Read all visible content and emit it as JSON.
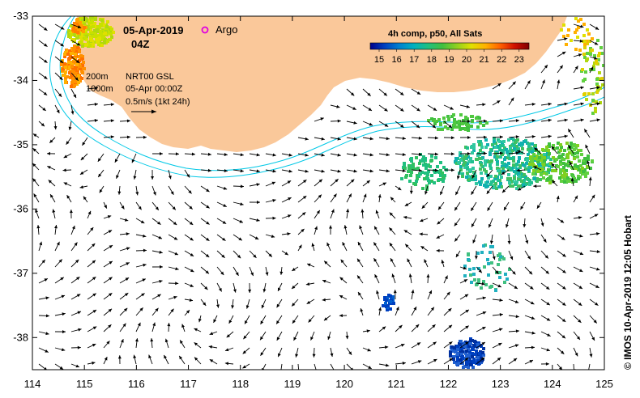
{
  "title": {
    "date": "05-Apr-2019",
    "time": "04Z",
    "argo_label": "Argo"
  },
  "colorbar": {
    "title": "4h comp, p50, All Sats",
    "ticks": [
      "15",
      "16",
      "17",
      "18",
      "19",
      "20",
      "21",
      "22",
      "23"
    ],
    "colors": [
      "#00008b",
      "#0040c0",
      "#0080d0",
      "#00b0c0",
      "#20c080",
      "#40c040",
      "#90d020",
      "#e0e000",
      "#ffb000",
      "#ff6000",
      "#d01000",
      "#800000"
    ]
  },
  "legend": {
    "isobath_200": "200m",
    "isobath_1000": "1000m",
    "product": "NRT00 GSL",
    "product_time": "05-Apr 00:00Z",
    "scale": "0.5m/s (1kt 24h)"
  },
  "credit": "© IMOS 10-Apr-2019 12:05 Hobart",
  "axes": {
    "x_ticks": [
      "114",
      "115",
      "116",
      "117",
      "118",
      "119",
      "120",
      "121",
      "122",
      "123",
      "124",
      "125"
    ],
    "y_ticks": [
      "-33",
      "-34",
      "-35",
      "-36",
      "-37",
      "-38"
    ],
    "x_range": [
      114,
      125
    ],
    "y_range": [
      -38.5,
      -33
    ]
  },
  "colors": {
    "land": "#fac89a",
    "isobath": "#00c8e6",
    "argo": "#e000e0"
  }
}
